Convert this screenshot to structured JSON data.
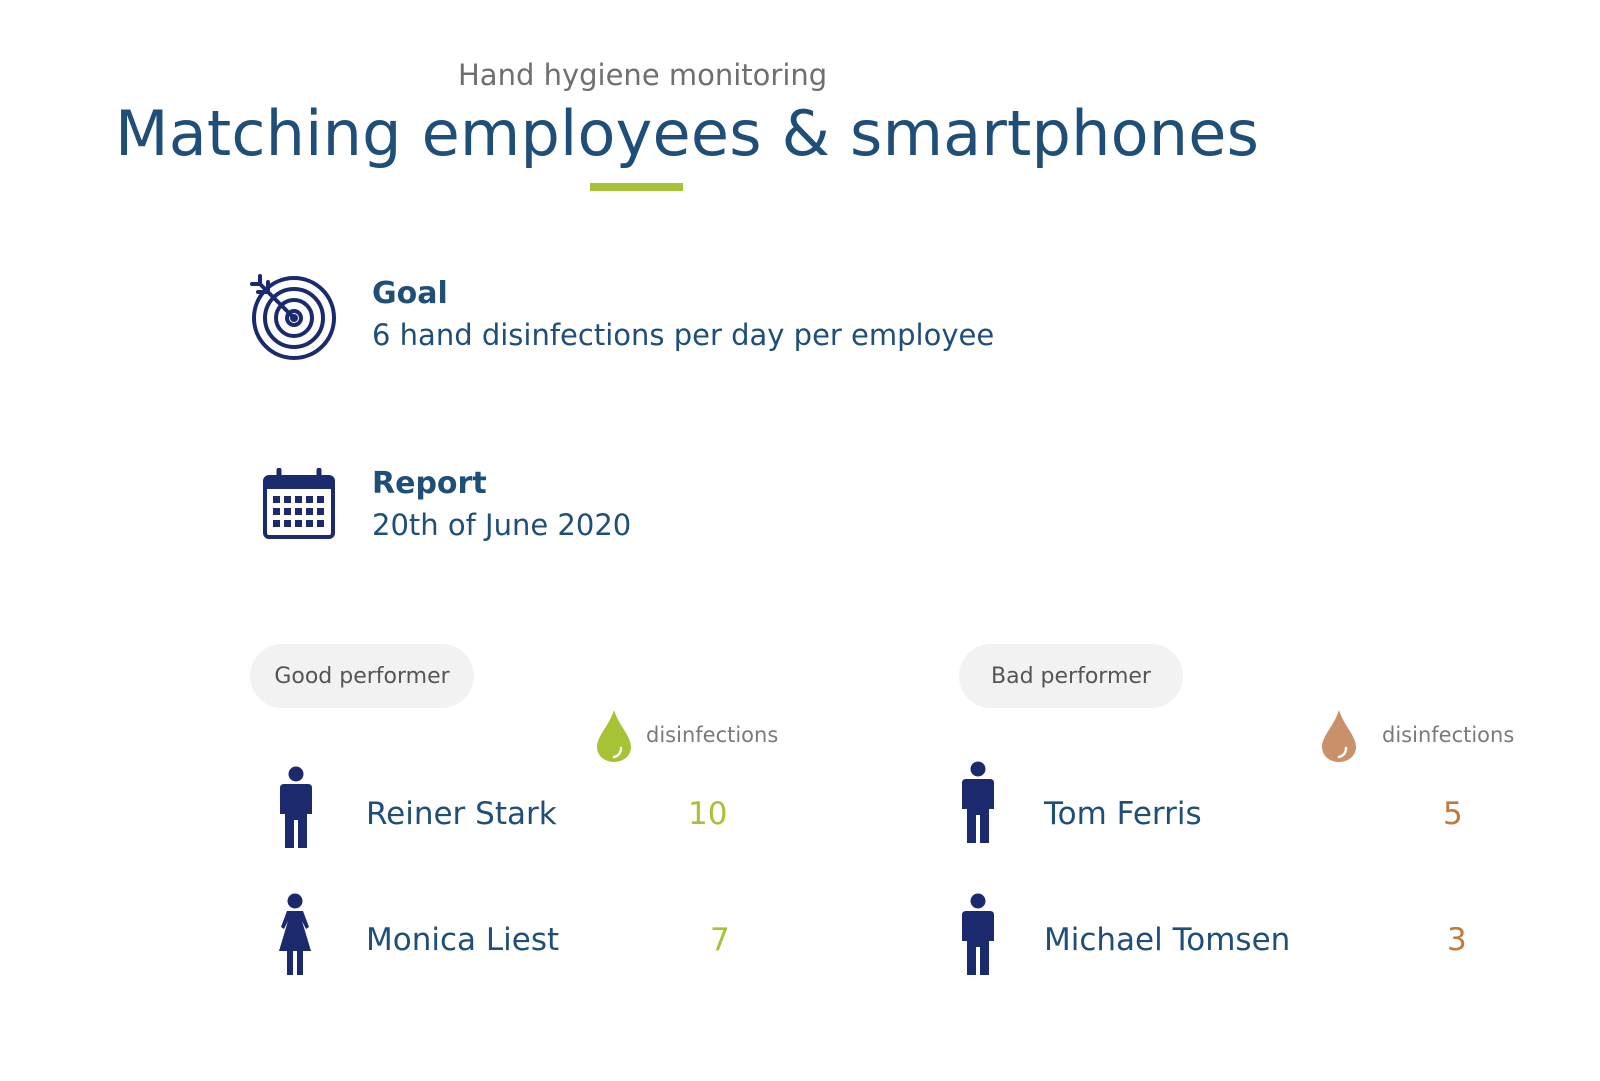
{
  "header": {
    "subtitle": "Hand hygiene monitoring",
    "title": "Matching employees & smartphones"
  },
  "goal": {
    "heading": "Goal",
    "text": "6 hand disinfections per day per employee"
  },
  "report": {
    "heading": "Report",
    "text": "20th of June 2020"
  },
  "good_performers": {
    "label": "Good performer",
    "column_label": "disinfections",
    "accent_color": "#a5c335",
    "people": [
      {
        "name": "Reiner Stark",
        "count": "10",
        "icon": "man-icon"
      },
      {
        "name": "Monica Liest",
        "count": "7",
        "icon": "woman-icon"
      }
    ]
  },
  "bad_performers": {
    "label": "Bad performer",
    "column_label": "disinfections",
    "accent_color": "#c07a3c",
    "people": [
      {
        "name": "Tom Ferris",
        "count": "5",
        "icon": "man-icon"
      },
      {
        "name": "Michael Tomsen",
        "count": "3",
        "icon": "man-icon"
      }
    ]
  },
  "colors": {
    "primary": "#1f4e79",
    "underline": "#a5c335",
    "icon": "#1a2a6c"
  }
}
